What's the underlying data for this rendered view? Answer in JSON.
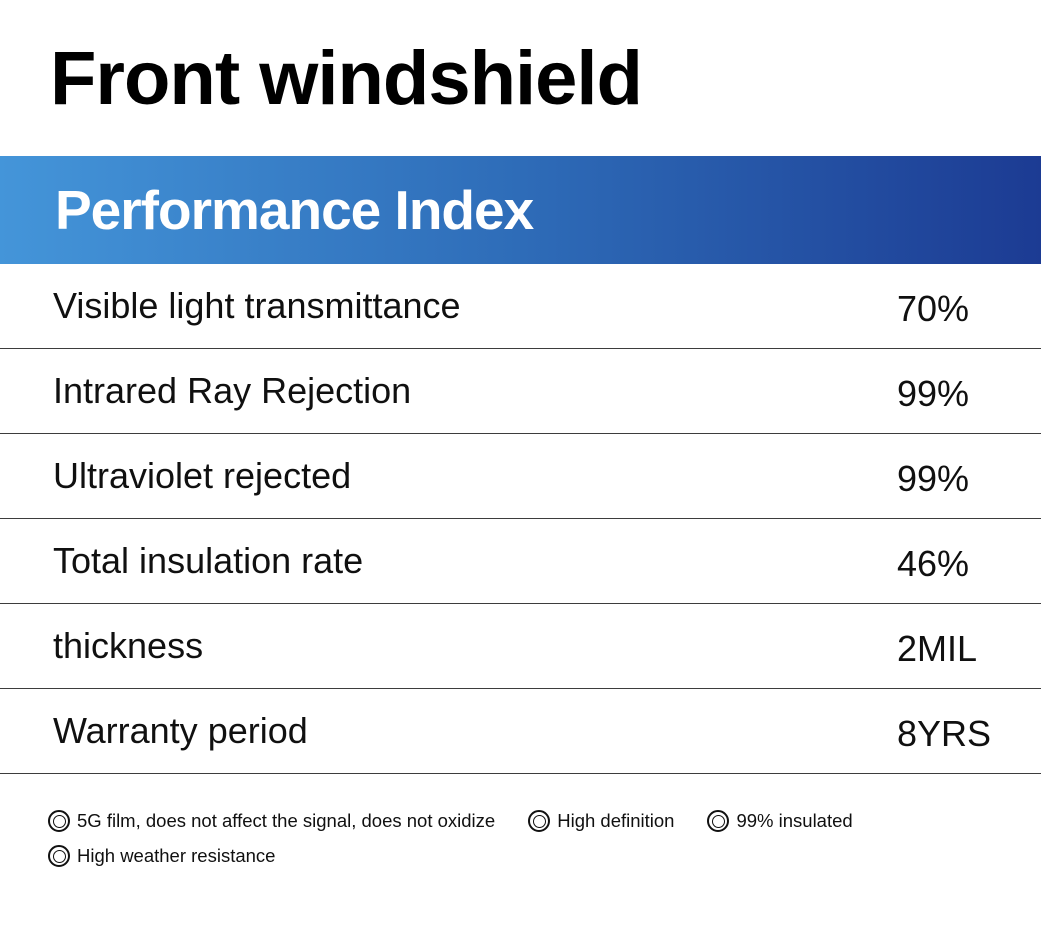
{
  "page": {
    "title": "Front windshield"
  },
  "header": {
    "title": "Performance Index",
    "text_color": "#ffffff",
    "gradient_start": "#4495d9",
    "gradient_mid": "#2e6cb8",
    "gradient_end": "#1c3b93"
  },
  "table": {
    "divider_color": "#3d3d3d",
    "rows": [
      {
        "label": "Visible light transmittance",
        "value": "70%"
      },
      {
        "label": "Intrared Ray Rejection",
        "value": "99%"
      },
      {
        "label": "Ultraviolet rejected",
        "value": "99%"
      },
      {
        "label": "Total insulation rate",
        "value": "46%"
      },
      {
        "label": "thickness",
        "value": "2MIL"
      },
      {
        "label": "Warranty period",
        "value": "8YRS"
      }
    ]
  },
  "features": {
    "icon": "double-circle-icon",
    "lines": [
      [
        "5G film, does not affect the signal, does not oxidize",
        "High definition",
        "99% insulated"
      ],
      [
        "High weather resistance"
      ]
    ]
  }
}
